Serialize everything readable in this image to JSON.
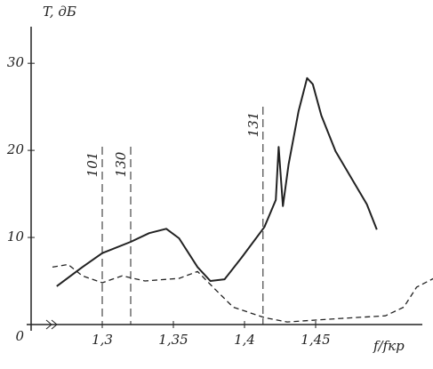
{
  "chart_data": {
    "type": "line",
    "y_label": "T, дБ",
    "x_label": "f/fкр",
    "xlim": [
      1.25,
      1.535
    ],
    "ylim": [
      0,
      34
    ],
    "xticks": [
      {
        "value": 1.3,
        "label": "1,3"
      },
      {
        "value": 1.35,
        "label": "1,35"
      },
      {
        "value": 1.4,
        "label": "1,4"
      },
      {
        "value": 1.45,
        "label": "1,45"
      }
    ],
    "yticks": [
      0,
      10,
      20,
      30
    ],
    "markers": [
      {
        "x": 1.3,
        "label": "101"
      },
      {
        "x": 1.32,
        "label": "130"
      },
      {
        "x": 1.413,
        "label": "131"
      }
    ],
    "series": [
      {
        "style": "solid",
        "color": "#222222",
        "x": [
          1.268,
          1.286,
          1.3,
          1.32,
          1.333,
          1.345,
          1.354,
          1.367,
          1.376,
          1.386,
          1.398,
          1.414,
          1.422,
          1.424,
          1.427,
          1.431,
          1.438,
          1.444,
          1.448,
          1.454,
          1.464,
          1.477,
          1.486,
          1.493
        ],
        "values": [
          4.4,
          6.6,
          8.2,
          9.5,
          10.5,
          11.0,
          9.9,
          6.6,
          5.0,
          5.2,
          7.7,
          11.2,
          14.3,
          20.4,
          13.6,
          18.4,
          24.5,
          28.3,
          27.6,
          24.0,
          19.9,
          16.3,
          13.8,
          10.9
        ]
      },
      {
        "style": "dashed",
        "color": "#222222",
        "x": [
          1.265,
          1.276,
          1.286,
          1.3,
          1.314,
          1.33,
          1.354,
          1.367,
          1.379,
          1.392,
          1.414,
          1.43,
          1.468,
          1.499,
          1.512,
          1.521,
          1.533
        ],
        "values": [
          6.6,
          6.9,
          5.6,
          4.8,
          5.6,
          5.0,
          5.3,
          6.1,
          4.1,
          2.0,
          0.8,
          0.3,
          0.7,
          1.0,
          2.0,
          4.3,
          5.3
        ]
      }
    ]
  }
}
